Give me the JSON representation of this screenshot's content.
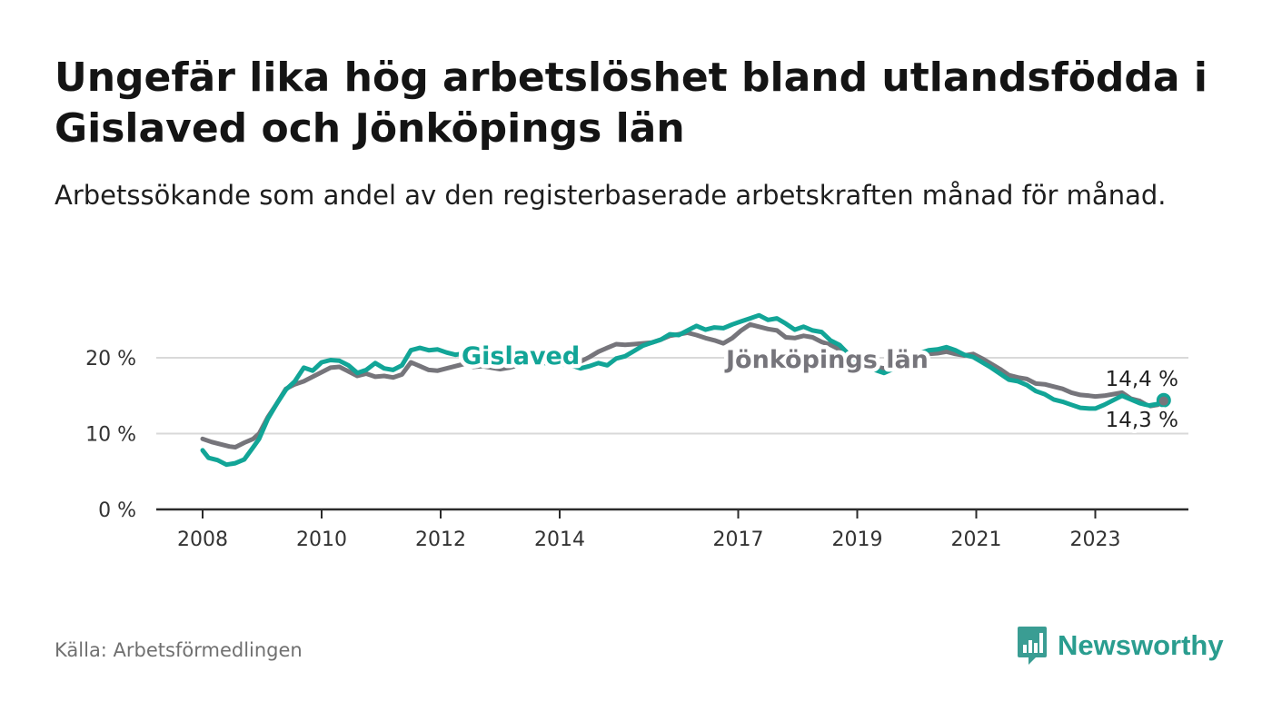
{
  "title": "Ungefär lika hög arbetslöshet bland utlandsfödda i Gislaved och Jönköpings län",
  "subtitle": "Arbetssökande som andel av den registerbaserade arbetskraften månad för månad.",
  "source": "Källa: Arbetsförmedlingen",
  "brand": {
    "name": "Newsworthy",
    "icon": "newsworthy-logo-icon",
    "color": "#3a9d93"
  },
  "colors": {
    "gislaved": "#12a597",
    "jonkoping": "#76757b",
    "grid": "#d9d9d9",
    "axis": "#2b2b2b"
  },
  "chart_data": {
    "type": "line",
    "title": "",
    "xlabel": "",
    "ylabel": "",
    "xlim": [
      2008,
      2024.25
    ],
    "ylim": [
      0,
      26.5
    ],
    "yticks": [
      0,
      10,
      20
    ],
    "ytick_labels": [
      "0 %",
      "10 %",
      "20 %"
    ],
    "xticks": [
      2008,
      2010,
      2012,
      2014,
      2017,
      2019,
      2021,
      2023
    ],
    "xtick_labels": [
      "2008",
      "2010",
      "2012",
      "2014",
      "2017",
      "2019",
      "2021",
      "2023"
    ],
    "series": [
      {
        "name": "Gislaved",
        "label": "Gislaved",
        "end_label": "14,4 %",
        "color": "#12a597",
        "points": [
          [
            2008.0,
            7.8
          ],
          [
            2008.1,
            6.8
          ],
          [
            2008.25,
            6.5
          ],
          [
            2008.4,
            5.9
          ],
          [
            2008.55,
            6.1
          ],
          [
            2008.7,
            6.6
          ],
          [
            2008.85,
            8.2
          ],
          [
            2008.95,
            9.3
          ],
          [
            2009.1,
            12.0
          ],
          [
            2009.25,
            14.0
          ],
          [
            2009.4,
            15.8
          ],
          [
            2009.55,
            16.9
          ],
          [
            2009.7,
            18.7
          ],
          [
            2009.85,
            18.3
          ],
          [
            2010.0,
            19.4
          ],
          [
            2010.15,
            19.7
          ],
          [
            2010.3,
            19.6
          ],
          [
            2010.45,
            19.0
          ],
          [
            2010.6,
            18.0
          ],
          [
            2010.75,
            18.4
          ],
          [
            2010.9,
            19.3
          ],
          [
            2011.05,
            18.6
          ],
          [
            2011.2,
            18.4
          ],
          [
            2011.35,
            19.0
          ],
          [
            2011.5,
            21.0
          ],
          [
            2011.65,
            21.3
          ],
          [
            2011.8,
            21.0
          ],
          [
            2011.95,
            21.1
          ],
          [
            2012.1,
            20.7
          ],
          [
            2012.25,
            20.4
          ],
          [
            2012.4,
            20.6
          ],
          [
            2012.55,
            20.4
          ],
          [
            2012.7,
            20.7
          ],
          [
            2012.85,
            20.6
          ],
          [
            2013.0,
            20.2
          ],
          [
            2013.15,
            20.0
          ],
          [
            2013.3,
            19.8
          ],
          [
            2013.45,
            19.7
          ],
          [
            2013.6,
            19.5
          ],
          [
            2013.75,
            19.3
          ],
          [
            2013.9,
            19.2
          ],
          [
            2014.05,
            19.1
          ],
          [
            2014.2,
            19.0
          ],
          [
            2014.35,
            18.6
          ],
          [
            2014.5,
            18.9
          ],
          [
            2014.65,
            19.3
          ],
          [
            2014.8,
            19.0
          ],
          [
            2014.95,
            19.9
          ],
          [
            2015.1,
            20.2
          ],
          [
            2015.25,
            20.9
          ],
          [
            2015.4,
            21.6
          ],
          [
            2015.55,
            22.0
          ],
          [
            2015.7,
            22.4
          ],
          [
            2015.85,
            23.1
          ],
          [
            2016.0,
            23.0
          ],
          [
            2016.15,
            23.6
          ],
          [
            2016.3,
            24.2
          ],
          [
            2016.45,
            23.7
          ],
          [
            2016.6,
            24.0
          ],
          [
            2016.75,
            23.9
          ],
          [
            2016.9,
            24.4
          ],
          [
            2017.05,
            24.8
          ],
          [
            2017.2,
            25.2
          ],
          [
            2017.35,
            25.6
          ],
          [
            2017.5,
            25.0
          ],
          [
            2017.65,
            25.2
          ],
          [
            2017.8,
            24.5
          ],
          [
            2017.95,
            23.7
          ],
          [
            2018.1,
            24.1
          ],
          [
            2018.25,
            23.6
          ],
          [
            2018.4,
            23.4
          ],
          [
            2018.55,
            22.3
          ],
          [
            2018.7,
            21.7
          ],
          [
            2018.85,
            20.5
          ],
          [
            2019.0,
            19.6
          ],
          [
            2019.15,
            18.9
          ],
          [
            2019.3,
            18.4
          ],
          [
            2019.45,
            18.0
          ],
          [
            2019.6,
            18.5
          ],
          [
            2019.75,
            19.3
          ],
          [
            2019.9,
            20.0
          ],
          [
            2020.05,
            20.6
          ],
          [
            2020.2,
            21.0
          ],
          [
            2020.35,
            21.1
          ],
          [
            2020.5,
            21.4
          ],
          [
            2020.65,
            21.0
          ],
          [
            2020.8,
            20.4
          ],
          [
            2020.95,
            20.1
          ],
          [
            2021.1,
            19.4
          ],
          [
            2021.25,
            18.7
          ],
          [
            2021.4,
            17.9
          ],
          [
            2021.55,
            17.1
          ],
          [
            2021.7,
            16.9
          ],
          [
            2021.85,
            16.4
          ],
          [
            2022.0,
            15.6
          ],
          [
            2022.15,
            15.2
          ],
          [
            2022.3,
            14.5
          ],
          [
            2022.45,
            14.2
          ],
          [
            2022.6,
            13.8
          ],
          [
            2022.75,
            13.4
          ],
          [
            2022.9,
            13.3
          ],
          [
            2023.0,
            13.3
          ],
          [
            2023.15,
            13.8
          ],
          [
            2023.3,
            14.4
          ],
          [
            2023.45,
            15.0
          ],
          [
            2023.6,
            14.5
          ],
          [
            2023.75,
            14.0
          ],
          [
            2023.9,
            13.7
          ],
          [
            2024.05,
            13.9
          ],
          [
            2024.15,
            14.4
          ]
        ]
      },
      {
        "name": "Jönköpings län",
        "label": "Jönköpings län",
        "end_label": "14,3 %",
        "color": "#76757b",
        "points": [
          [
            2008.0,
            9.3
          ],
          [
            2008.15,
            8.9
          ],
          [
            2008.3,
            8.6
          ],
          [
            2008.45,
            8.3
          ],
          [
            2008.55,
            8.2
          ],
          [
            2008.7,
            8.8
          ],
          [
            2008.85,
            9.3
          ],
          [
            2008.95,
            10.0
          ],
          [
            2009.1,
            12.2
          ],
          [
            2009.25,
            14.0
          ],
          [
            2009.4,
            15.9
          ],
          [
            2009.55,
            16.5
          ],
          [
            2009.7,
            16.9
          ],
          [
            2009.85,
            17.5
          ],
          [
            2010.0,
            18.1
          ],
          [
            2010.15,
            18.7
          ],
          [
            2010.3,
            18.8
          ],
          [
            2010.45,
            18.2
          ],
          [
            2010.6,
            17.6
          ],
          [
            2010.75,
            17.9
          ],
          [
            2010.9,
            17.5
          ],
          [
            2011.05,
            17.6
          ],
          [
            2011.2,
            17.4
          ],
          [
            2011.35,
            17.8
          ],
          [
            2011.5,
            19.4
          ],
          [
            2011.65,
            18.9
          ],
          [
            2011.8,
            18.4
          ],
          [
            2011.95,
            18.3
          ],
          [
            2012.1,
            18.6
          ],
          [
            2012.25,
            18.9
          ],
          [
            2012.4,
            19.2
          ],
          [
            2012.55,
            18.8
          ],
          [
            2012.7,
            18.9
          ],
          [
            2012.85,
            18.7
          ],
          [
            2013.0,
            18.5
          ],
          [
            2013.15,
            18.7
          ],
          [
            2013.3,
            19.0
          ],
          [
            2013.45,
            19.2
          ],
          [
            2013.6,
            19.3
          ],
          [
            2013.75,
            19.5
          ],
          [
            2013.9,
            19.7
          ],
          [
            2014.05,
            19.8
          ],
          [
            2014.2,
            19.9
          ],
          [
            2014.35,
            19.5
          ],
          [
            2014.5,
            20.1
          ],
          [
            2014.65,
            20.8
          ],
          [
            2014.8,
            21.3
          ],
          [
            2014.95,
            21.8
          ],
          [
            2015.1,
            21.7
          ],
          [
            2015.25,
            21.8
          ],
          [
            2015.4,
            21.9
          ],
          [
            2015.55,
            22.0
          ],
          [
            2015.7,
            22.4
          ],
          [
            2015.85,
            22.9
          ],
          [
            2016.0,
            23.1
          ],
          [
            2016.15,
            23.3
          ],
          [
            2016.3,
            23.0
          ],
          [
            2016.45,
            22.6
          ],
          [
            2016.6,
            22.3
          ],
          [
            2016.75,
            21.9
          ],
          [
            2016.9,
            22.6
          ],
          [
            2017.05,
            23.6
          ],
          [
            2017.2,
            24.4
          ],
          [
            2017.35,
            24.1
          ],
          [
            2017.5,
            23.8
          ],
          [
            2017.65,
            23.6
          ],
          [
            2017.8,
            22.7
          ],
          [
            2017.95,
            22.6
          ],
          [
            2018.1,
            22.9
          ],
          [
            2018.25,
            22.7
          ],
          [
            2018.4,
            22.1
          ],
          [
            2018.55,
            21.7
          ],
          [
            2018.7,
            21.1
          ],
          [
            2018.85,
            20.5
          ],
          [
            2019.0,
            19.9
          ],
          [
            2019.15,
            19.3
          ],
          [
            2019.3,
            18.8
          ],
          [
            2019.45,
            18.6
          ],
          [
            2019.6,
            18.9
          ],
          [
            2019.75,
            19.3
          ],
          [
            2019.9,
            19.8
          ],
          [
            2020.05,
            20.2
          ],
          [
            2020.2,
            20.5
          ],
          [
            2020.35,
            20.6
          ],
          [
            2020.5,
            20.8
          ],
          [
            2020.65,
            20.5
          ],
          [
            2020.8,
            20.3
          ],
          [
            2020.95,
            20.5
          ],
          [
            2021.1,
            19.9
          ],
          [
            2021.25,
            19.2
          ],
          [
            2021.4,
            18.5
          ],
          [
            2021.55,
            17.7
          ],
          [
            2021.7,
            17.4
          ],
          [
            2021.85,
            17.2
          ],
          [
            2022.0,
            16.6
          ],
          [
            2022.15,
            16.5
          ],
          [
            2022.3,
            16.2
          ],
          [
            2022.45,
            15.9
          ],
          [
            2022.6,
            15.4
          ],
          [
            2022.75,
            15.1
          ],
          [
            2022.9,
            15.0
          ],
          [
            2023.0,
            14.9
          ],
          [
            2023.15,
            15.0
          ],
          [
            2023.3,
            15.2
          ],
          [
            2023.45,
            15.4
          ],
          [
            2023.6,
            14.6
          ],
          [
            2023.75,
            14.3
          ],
          [
            2023.9,
            13.6
          ],
          [
            2024.05,
            13.8
          ],
          [
            2024.15,
            14.3
          ]
        ]
      }
    ]
  }
}
